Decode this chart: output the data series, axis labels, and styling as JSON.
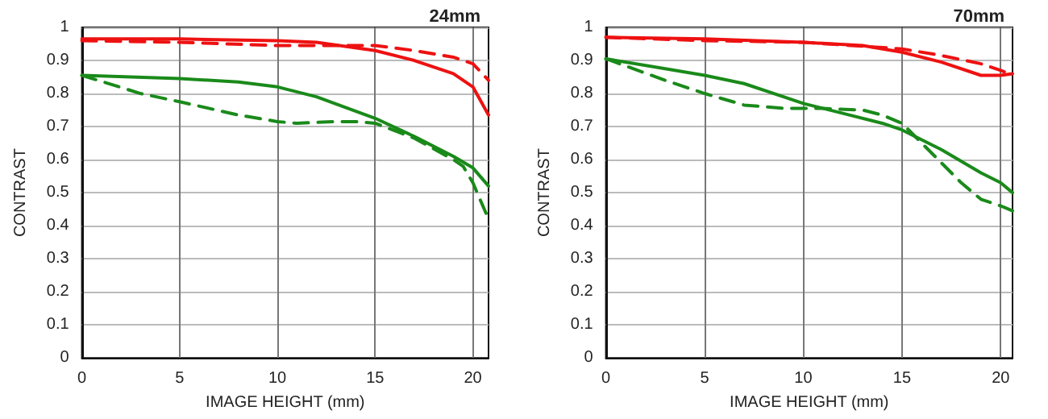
{
  "chart_data": [
    {
      "type": "line",
      "title": "24mm",
      "xlabel": "IMAGE HEIGHT (mm)",
      "ylabel": "CONTRAST",
      "xlim": [
        0,
        20.8
      ],
      "xticks": [
        0,
        5,
        10,
        15,
        20
      ],
      "ylim": [
        0,
        1
      ],
      "yticks": [
        0,
        0.1,
        0.2,
        0.3,
        0.4,
        0.5,
        0.6,
        0.7,
        0.8,
        0.9,
        1
      ],
      "grid": true,
      "marker": "none",
      "series": [
        {
          "color": "#ee1111",
          "line_style": "solid",
          "x": [
            0,
            5,
            10,
            12,
            15,
            17,
            19,
            20,
            20.8
          ],
          "values": [
            0.965,
            0.965,
            0.96,
            0.955,
            0.93,
            0.9,
            0.86,
            0.82,
            0.735
          ]
        },
        {
          "color": "#ee1111",
          "line_style": "dashed",
          "x": [
            0,
            5,
            10,
            15,
            17,
            19,
            20,
            20.8
          ],
          "values": [
            0.96,
            0.955,
            0.945,
            0.945,
            0.93,
            0.91,
            0.89,
            0.84
          ]
        },
        {
          "color": "#1a8a1a",
          "line_style": "solid",
          "x": [
            0,
            5,
            8,
            10,
            12,
            15,
            17,
            19,
            20,
            20.8
          ],
          "values": [
            0.855,
            0.845,
            0.835,
            0.82,
            0.79,
            0.725,
            0.67,
            0.61,
            0.575,
            0.52
          ]
        },
        {
          "color": "#1a8a1a",
          "line_style": "dashed",
          "x": [
            0,
            3,
            5,
            8,
            10,
            11,
            13,
            14,
            15,
            17,
            19,
            19.5,
            20,
            20.8
          ],
          "values": [
            0.855,
            0.8,
            0.775,
            0.735,
            0.715,
            0.71,
            0.715,
            0.715,
            0.71,
            0.665,
            0.6,
            0.58,
            0.53,
            0.42
          ]
        }
      ]
    },
    {
      "type": "line",
      "title": "70mm",
      "xlabel": "IMAGE HEIGHT (mm)",
      "ylabel": "CONTRAST",
      "xlim": [
        0,
        20.6
      ],
      "xticks": [
        0,
        5,
        10,
        15,
        20
      ],
      "ylim": [
        0,
        1
      ],
      "yticks": [
        0,
        0.1,
        0.2,
        0.3,
        0.4,
        0.5,
        0.6,
        0.7,
        0.8,
        0.9,
        1
      ],
      "grid": true,
      "marker": "none",
      "series": [
        {
          "color": "#ee1111",
          "line_style": "solid",
          "x": [
            0,
            5,
            10,
            13,
            15,
            17,
            19,
            20,
            20.6
          ],
          "values": [
            0.97,
            0.965,
            0.955,
            0.945,
            0.925,
            0.895,
            0.855,
            0.855,
            0.86
          ]
        },
        {
          "color": "#ee1111",
          "line_style": "dashed",
          "x": [
            0,
            5,
            10,
            15,
            17,
            19,
            20,
            20.6
          ],
          "values": [
            0.97,
            0.96,
            0.955,
            0.935,
            0.915,
            0.89,
            0.87,
            0.855
          ]
        },
        {
          "color": "#1a8a1a",
          "line_style": "solid",
          "x": [
            0,
            3,
            5,
            7,
            9,
            10,
            12,
            14,
            15,
            16,
            17,
            19,
            20,
            20.6
          ],
          "values": [
            0.905,
            0.875,
            0.855,
            0.83,
            0.79,
            0.77,
            0.74,
            0.71,
            0.69,
            0.66,
            0.63,
            0.56,
            0.53,
            0.5
          ]
        },
        {
          "color": "#1a8a1a",
          "line_style": "dashed",
          "x": [
            0,
            3,
            5,
            7,
            9,
            11,
            13,
            14,
            15,
            16,
            17,
            18,
            19,
            20,
            20.6
          ],
          "values": [
            0.905,
            0.84,
            0.8,
            0.765,
            0.755,
            0.755,
            0.75,
            0.735,
            0.71,
            0.65,
            0.59,
            0.53,
            0.48,
            0.46,
            0.445
          ]
        }
      ]
    }
  ]
}
